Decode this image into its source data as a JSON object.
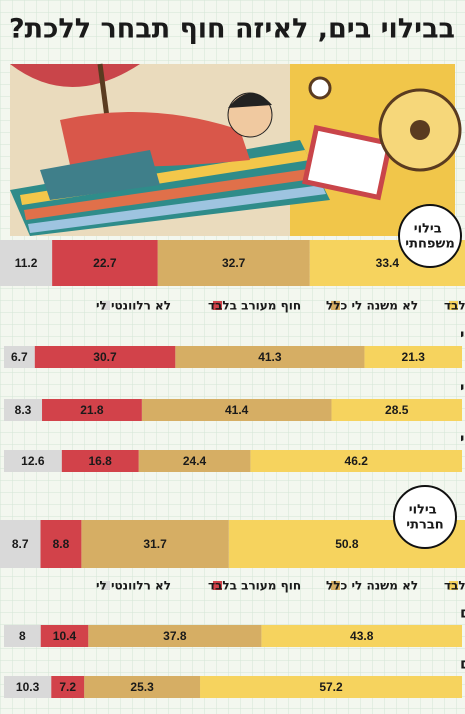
{
  "title": "בבילוי בים, לאיזה חוף תבחר ללכת?",
  "chart_data": [
    {
      "type": "bar",
      "orientation": "horizontal",
      "stacked": true,
      "label": "בילוי משפחתי",
      "xlim": [
        0,
        100
      ],
      "categories": [
        null,
        "דתי ליברלי",
        "דתי קלאסי",
        "דתי תורני"
      ],
      "series": [
        {
          "name": "חוף נפרד בלבד",
          "color": "#f6d35e",
          "values": [
            33.4,
            21.3,
            28.5,
            46.2
          ]
        },
        {
          "name": "לא משנה לי כלל",
          "color": "#d6ae64",
          "values": [
            32.7,
            41.3,
            41.4,
            24.4
          ]
        },
        {
          "name": "חוף מעורב בלבד",
          "color": "#d2424a",
          "values": [
            22.7,
            30.7,
            21.8,
            16.8
          ]
        },
        {
          "name": "לא רלוונטי לי",
          "color": "#d9d9d9",
          "values": [
            11.2,
            6.7,
            8.3,
            12.6
          ]
        }
      ]
    },
    {
      "type": "bar",
      "orientation": "horizontal",
      "stacked": true,
      "label": "בילוי חברתי",
      "xlim": [
        0,
        100
      ],
      "categories": [
        null,
        "גברים",
        "נשים"
      ],
      "series": [
        {
          "name": "חוף נפרד בלבד",
          "color": "#f6d35e",
          "values": [
            50.8,
            43.8,
            57.2
          ]
        },
        {
          "name": "לא משנה לי כלל",
          "color": "#d6ae64",
          "values": [
            31.7,
            37.8,
            25.3
          ]
        },
        {
          "name": "חוף מעורב בלבד",
          "color": "#d2424a",
          "values": [
            8.8,
            10.4,
            7.2
          ]
        },
        {
          "name": "לא רלוונטי לי",
          "color": "#d9d9d9",
          "values": [
            8.7,
            8,
            10.3
          ]
        }
      ]
    }
  ]
}
